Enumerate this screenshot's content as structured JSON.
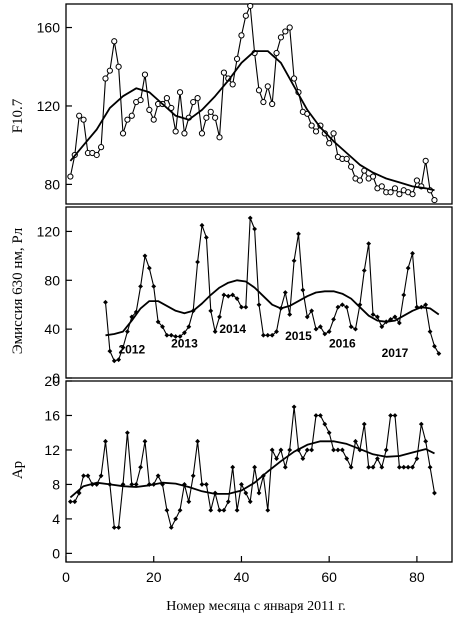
{
  "xlabel": "Номер месяца с января 2011 г.",
  "chart_data": [
    {
      "type": "line",
      "ylabel": "F10.7",
      "xlim": [
        0,
        88
      ],
      "ylim": [
        70,
        172
      ],
      "yticks": [
        80,
        120,
        160
      ],
      "xticks": [],
      "series": [
        {
          "marker": "open-circle",
          "x": [
            1,
            2,
            3,
            4,
            5,
            6,
            7,
            8,
            9,
            10,
            11,
            12,
            13,
            14,
            15,
            16,
            17,
            18,
            19,
            20,
            21,
            22,
            23,
            24,
            25,
            26,
            27,
            28,
            29,
            30,
            31,
            32,
            33,
            34,
            35,
            36,
            37,
            38,
            39,
            40,
            41,
            42,
            43,
            44,
            45,
            46,
            47,
            48,
            49,
            50,
            51,
            52,
            53,
            54,
            55,
            56,
            57,
            58,
            59,
            60,
            61,
            62,
            63,
            64,
            65,
            66,
            67,
            68,
            69,
            70,
            71,
            72,
            73,
            74,
            75,
            76,
            77,
            78,
            79,
            80,
            81,
            82,
            83,
            84
          ],
          "values": [
            84,
            95,
            115,
            113,
            96,
            96,
            95,
            99,
            134,
            138,
            153,
            140,
            106,
            113,
            115,
            122,
            123,
            136,
            118,
            113,
            121,
            121,
            124,
            119,
            107,
            127,
            106,
            114,
            122,
            124,
            106,
            114,
            117,
            114,
            104,
            137,
            134,
            131,
            144,
            156,
            166,
            171,
            147,
            128,
            122,
            130,
            121,
            147,
            155,
            158,
            160,
            134,
            127,
            117,
            116,
            110,
            107,
            110,
            106,
            101,
            106,
            94,
            93,
            93,
            89,
            83,
            82,
            87,
            83,
            84,
            78,
            79,
            76,
            76,
            78,
            75,
            77,
            76,
            75,
            82,
            79,
            92,
            77,
            72
          ]
        },
        {
          "marker": "none",
          "x": [
            1,
            4,
            7,
            10,
            13,
            16,
            19,
            22,
            25,
            28,
            31,
            34,
            37,
            40,
            43,
            46,
            49,
            52,
            55,
            58,
            61,
            64,
            67,
            70,
            73,
            76,
            79,
            82,
            84
          ],
          "values": [
            92,
            100,
            108,
            119,
            125,
            129,
            127,
            121,
            115,
            113,
            118,
            125,
            133,
            142,
            148,
            148,
            142,
            130,
            118,
            109,
            102,
            96,
            90,
            86,
            83,
            81,
            79,
            78,
            77
          ]
        }
      ]
    },
    {
      "type": "line",
      "ylabel": "Эмиссия 630 нм, Рл",
      "xlim": [
        0,
        88
      ],
      "ylim": [
        0,
        140
      ],
      "yticks": [
        0,
        40,
        80,
        120
      ],
      "xticks": [],
      "annotations": [
        {
          "text": "2012",
          "x": 15,
          "y": 20
        },
        {
          "text": "2013",
          "x": 27,
          "y": 25
        },
        {
          "text": "2014",
          "x": 38,
          "y": 37
        },
        {
          "text": "2015",
          "x": 53,
          "y": 31
        },
        {
          "text": "2016",
          "x": 63,
          "y": 25
        },
        {
          "text": "2017",
          "x": 75,
          "y": 17
        }
      ],
      "series": [
        {
          "marker": "filled-diamond",
          "x": [
            9,
            10,
            11,
            12,
            13,
            14,
            15,
            16,
            17,
            18,
            19,
            20,
            21,
            22,
            23,
            24,
            25,
            26,
            27,
            28,
            29,
            30,
            31,
            32,
            33,
            34,
            35,
            36,
            37,
            38,
            39,
            40,
            41,
            42,
            43,
            44,
            45,
            46,
            47,
            48,
            49,
            50,
            51,
            52,
            53,
            54,
            55,
            56,
            57,
            58,
            59,
            60,
            61,
            62,
            63,
            64,
            65,
            66,
            67,
            68,
            69,
            70,
            71,
            72,
            73,
            74,
            75,
            76,
            77,
            78,
            79,
            80,
            81,
            82,
            83,
            84,
            85
          ],
          "values": [
            62,
            22,
            14,
            15,
            25,
            38,
            50,
            54,
            75,
            100,
            90,
            75,
            46,
            42,
            35,
            35,
            34,
            34,
            37,
            42,
            55,
            95,
            125,
            115,
            55,
            38,
            50,
            68,
            67,
            68,
            65,
            58,
            58,
            131,
            122,
            60,
            35,
            35,
            35,
            38,
            57,
            70,
            52,
            96,
            118,
            72,
            50,
            55,
            40,
            42,
            36,
            38,
            48,
            58,
            60,
            58,
            42,
            40,
            60,
            88,
            110,
            52,
            50,
            42,
            46,
            48,
            50,
            45,
            68,
            90,
            102,
            58,
            58,
            60,
            38,
            26,
            20
          ]
        },
        {
          "marker": "none",
          "x": [
            9,
            11,
            13,
            15,
            17,
            19,
            21,
            23,
            25,
            27,
            29,
            31,
            33,
            35,
            37,
            39,
            41,
            43,
            45,
            47,
            49,
            51,
            53,
            55,
            57,
            59,
            61,
            63,
            65,
            67,
            69,
            71,
            73,
            75,
            77,
            79,
            81,
            83,
            85
          ],
          "values": [
            35,
            36,
            38,
            47,
            57,
            63,
            63,
            59,
            55,
            53,
            55,
            61,
            68,
            74,
            78,
            80,
            79,
            74,
            67,
            60,
            57,
            59,
            63,
            67,
            70,
            71,
            71,
            69,
            65,
            58,
            51,
            47,
            46,
            47,
            51,
            55,
            58,
            57,
            52
          ]
        }
      ]
    },
    {
      "type": "line",
      "ylabel": "Ap",
      "xlim": [
        0,
        88
      ],
      "ylim": [
        -1,
        20
      ],
      "yticks": [
        0,
        4,
        8,
        12,
        16,
        20
      ],
      "xticks": [
        0,
        20,
        40,
        60,
        80
      ],
      "series": [
        {
          "marker": "filled-diamond",
          "x": [
            1,
            2,
            3,
            4,
            5,
            6,
            7,
            8,
            9,
            10,
            11,
            12,
            13,
            14,
            15,
            16,
            17,
            18,
            19,
            20,
            21,
            22,
            23,
            24,
            25,
            26,
            27,
            28,
            29,
            30,
            31,
            32,
            33,
            34,
            35,
            36,
            37,
            38,
            39,
            40,
            41,
            42,
            43,
            44,
            45,
            46,
            47,
            48,
            49,
            50,
            51,
            52,
            53,
            54,
            55,
            56,
            57,
            58,
            59,
            60,
            61,
            62,
            63,
            64,
            65,
            66,
            67,
            68,
            69,
            70,
            71,
            72,
            73,
            74,
            75,
            76,
            77,
            78,
            79,
            80,
            81,
            82,
            83,
            84
          ],
          "values": [
            6,
            6,
            7,
            9,
            9,
            8,
            8,
            9,
            13,
            8,
            3,
            3,
            8,
            14,
            8,
            8,
            10,
            13,
            8,
            8,
            9,
            8,
            5,
            3,
            4,
            5,
            8,
            6,
            9,
            13,
            8,
            8,
            5,
            7,
            5,
            5,
            6,
            10,
            5,
            8,
            7,
            6,
            10,
            7,
            9,
            5,
            12,
            11,
            12,
            10,
            12,
            17,
            12,
            11,
            12,
            12,
            16,
            16,
            15,
            14,
            12,
            12,
            12,
            11,
            10,
            13,
            12,
            15,
            10,
            10,
            11,
            10,
            12,
            16,
            16,
            10,
            10,
            10,
            10,
            11,
            15,
            13,
            10,
            7
          ]
        },
        {
          "marker": "none",
          "x": [
            1,
            4,
            7,
            10,
            13,
            16,
            19,
            22,
            25,
            28,
            31,
            34,
            37,
            40,
            43,
            46,
            49,
            52,
            55,
            58,
            61,
            64,
            67,
            70,
            73,
            76,
            79,
            82,
            84
          ],
          "values": [
            6.5,
            7.8,
            8.2,
            8.0,
            7.8,
            7.7,
            7.9,
            8.2,
            8.1,
            7.7,
            7.2,
            6.9,
            6.9,
            7.3,
            8.2,
            9.5,
            10.7,
            11.8,
            12.6,
            13.0,
            13.0,
            12.7,
            12.1,
            11.5,
            11.2,
            11.3,
            11.7,
            12.1,
            11.6
          ]
        }
      ]
    }
  ]
}
